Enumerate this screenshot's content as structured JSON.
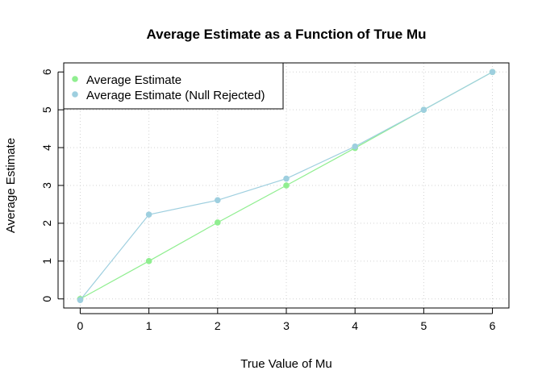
{
  "chart_data": {
    "type": "line",
    "title": "Average Estimate as a Function of True Mu",
    "xlabel": "True Value of Mu",
    "ylabel": "Average Estimate",
    "x": [
      0,
      1,
      2,
      3,
      4,
      5,
      6
    ],
    "xlim": [
      -0.24,
      6.24
    ],
    "ylim": [
      -0.24,
      6.24
    ],
    "xticks": [
      "0",
      "1",
      "2",
      "3",
      "4",
      "5",
      "6"
    ],
    "yticks": [
      "0",
      "1",
      "2",
      "3",
      "4",
      "5",
      "6"
    ],
    "grid": true,
    "legend_position": "top-left",
    "series": [
      {
        "name": "Average Estimate",
        "color": "#90ee90",
        "values": [
          0.0,
          1.0,
          2.02,
          3.0,
          3.99,
          5.0,
          6.0
        ]
      },
      {
        "name": "Average Estimate (Null Rejected)",
        "color": "#9ecfdf",
        "values": [
          -0.03,
          2.23,
          2.61,
          3.18,
          4.03,
          5.0,
          6.0
        ]
      }
    ]
  }
}
